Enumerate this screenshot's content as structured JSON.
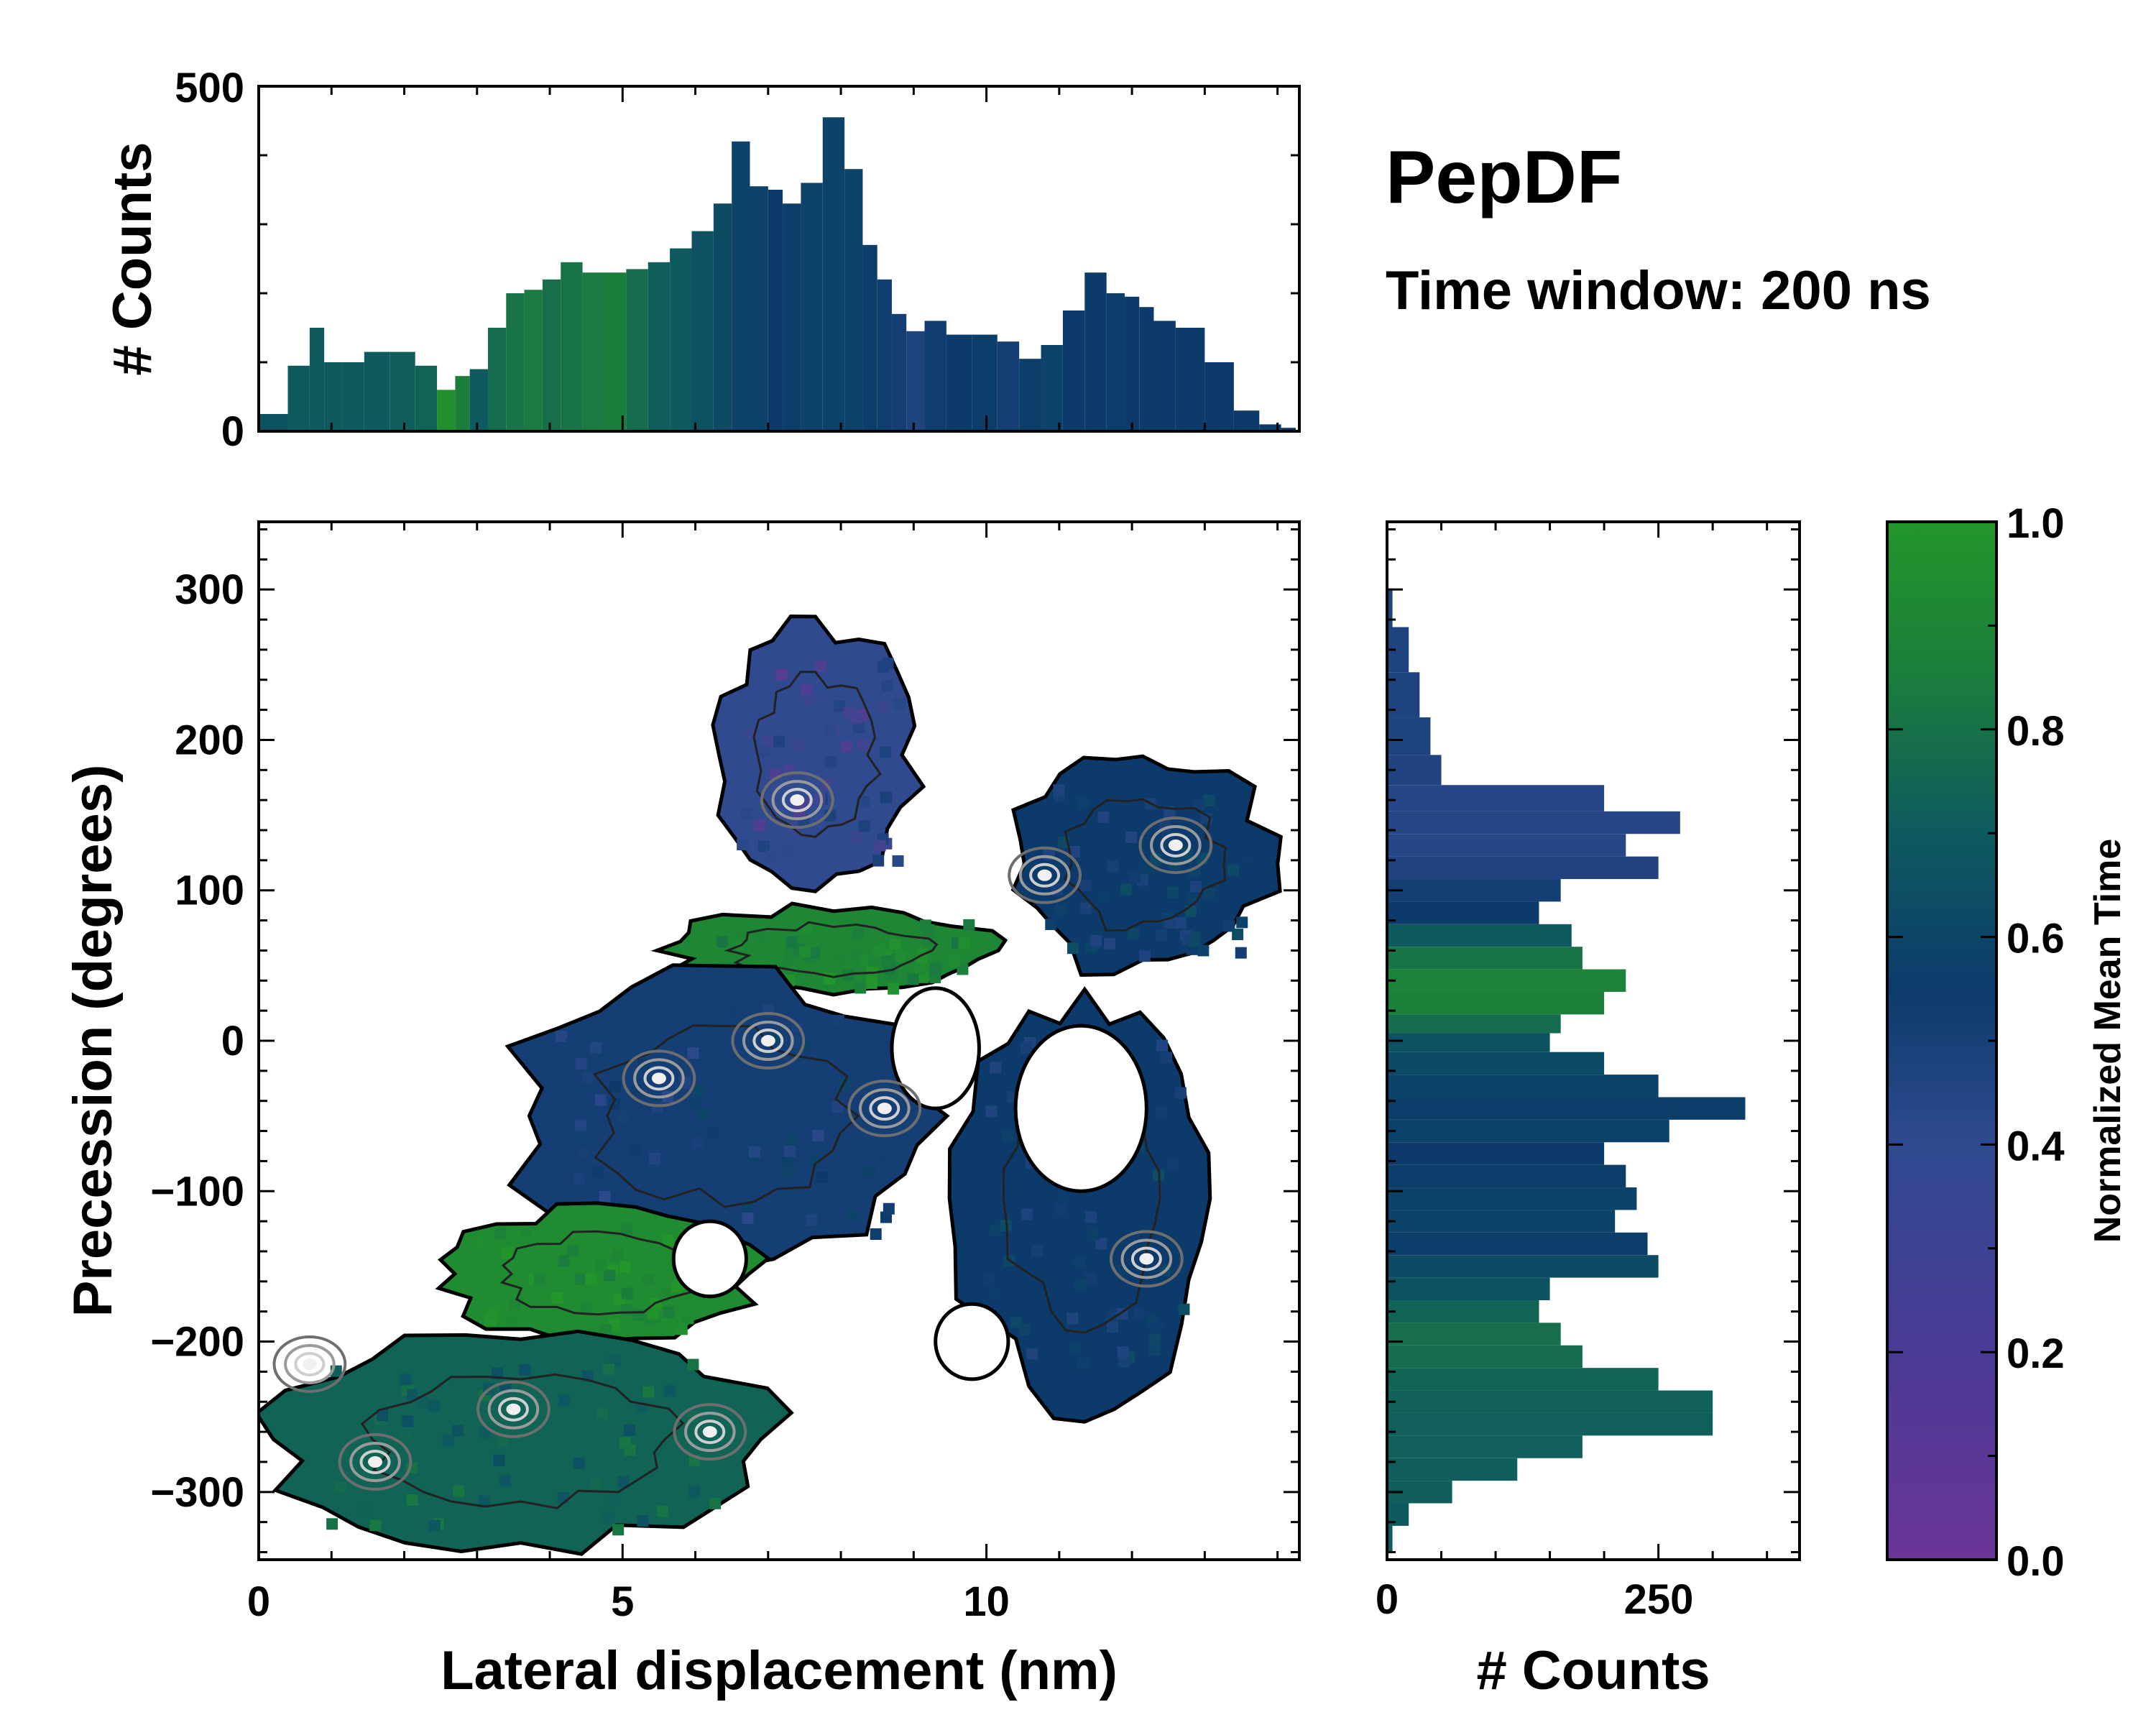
{
  "figure": {
    "title": "PepDF",
    "subtitle": "Time window: 200 ns"
  },
  "chart_data": [
    {
      "id": "top_histogram",
      "type": "bar",
      "ylabel": "# Counts",
      "xlim": [
        0,
        14.3
      ],
      "ylim": [
        0,
        500
      ],
      "yticks": [
        0,
        500
      ],
      "color_by": "Normalized Mean Time",
      "x": [
        0.2,
        0.6,
        0.8,
        1.0,
        1.3,
        1.6,
        2.0,
        2.3,
        2.6,
        2.8,
        3.0,
        3.3,
        3.5,
        3.8,
        4.0,
        4.3,
        4.6,
        4.9,
        5.2,
        5.5,
        5.8,
        6.1,
        6.4,
        6.6,
        6.9,
        7.1,
        7.3,
        7.6,
        7.9,
        8.2,
        8.4,
        8.6,
        8.8,
        9.0,
        9.3,
        9.6,
        10.0,
        10.3,
        10.6,
        10.9,
        11.2,
        11.5,
        11.8,
        12.0,
        12.2,
        12.4,
        12.8,
        13.2,
        13.6,
        13.9,
        14.2
      ],
      "values": [
        25,
        95,
        150,
        100,
        100,
        115,
        115,
        95,
        60,
        80,
        90,
        150,
        200,
        205,
        220,
        245,
        230,
        230,
        235,
        245,
        265,
        290,
        330,
        420,
        355,
        350,
        330,
        360,
        455,
        380,
        270,
        220,
        170,
        145,
        160,
        140,
        140,
        130,
        105,
        125,
        175,
        230,
        200,
        195,
        180,
        160,
        150,
        100,
        30,
        10,
        5
      ],
      "norm_time": [
        0.55,
        0.6,
        0.6,
        0.6,
        0.6,
        0.6,
        0.62,
        0.65,
        0.95,
        0.8,
        0.6,
        0.7,
        0.75,
        0.78,
        0.72,
        0.75,
        0.78,
        0.8,
        0.7,
        0.62,
        0.6,
        0.55,
        0.5,
        0.45,
        0.45,
        0.4,
        0.42,
        0.45,
        0.45,
        0.45,
        0.42,
        0.38,
        0.35,
        0.3,
        0.38,
        0.4,
        0.42,
        0.35,
        0.42,
        0.45,
        0.4,
        0.4,
        0.42,
        0.4,
        0.4,
        0.4,
        0.4,
        0.4,
        0.4,
        0.4,
        0.4
      ]
    },
    {
      "id": "joint_map",
      "type": "heatmap",
      "xlabel": "Lateral displacement (nm)",
      "ylabel": "Precession (degrees)",
      "xlim": [
        0,
        14.3
      ],
      "ylim": [
        -345,
        345
      ],
      "xticks": [
        0,
        5,
        10
      ],
      "yticks": [
        -300,
        -200,
        -100,
        0,
        100,
        200,
        300
      ],
      "color_by": "Normalized Mean Time",
      "regions": [
        {
          "name": "upper-purple",
          "norm_time": 0.2,
          "x": [
            6.2,
            9.1
          ],
          "y": [
            100,
            280
          ]
        },
        {
          "name": "upper-right-blue",
          "norm_time": 0.4,
          "x": [
            10.3,
            14.0
          ],
          "y": [
            40,
            195
          ]
        },
        {
          "name": "central-green",
          "norm_time": 0.88,
          "x": [
            5.5,
            10.3
          ],
          "y": [
            30,
            90
          ]
        },
        {
          "name": "central-mixed",
          "norm_time": 0.35,
          "x": [
            3.3,
            9.5
          ],
          "y": [
            -150,
            50
          ]
        },
        {
          "name": "right-ring-blue",
          "norm_time": 0.4,
          "x": [
            9.5,
            13.2
          ],
          "y": [
            -250,
            40
          ]
        },
        {
          "name": "mid-green",
          "norm_time": 0.92,
          "x": [
            2.3,
            7.0
          ],
          "y": [
            -200,
            -110
          ]
        },
        {
          "name": "lower-teal",
          "norm_time": 0.65,
          "x": [
            0,
            7.2
          ],
          "y": [
            -340,
            -190
          ]
        }
      ],
      "peaks": [
        {
          "x": 7.4,
          "y": 160
        },
        {
          "x": 10.8,
          "y": 110
        },
        {
          "x": 12.6,
          "y": 130
        },
        {
          "x": 7.0,
          "y": 0
        },
        {
          "x": 8.6,
          "y": -45
        },
        {
          "x": 5.5,
          "y": -25
        },
        {
          "x": 12.2,
          "y": -145
        },
        {
          "x": 0.7,
          "y": -215
        },
        {
          "x": 1.6,
          "y": -280
        },
        {
          "x": 6.2,
          "y": -260
        },
        {
          "x": 3.5,
          "y": -245
        }
      ]
    },
    {
      "id": "right_histogram",
      "type": "bar",
      "orientation": "horizontal",
      "xlabel": "# Counts",
      "xlim": [
        0,
        380
      ],
      "xticks": [
        0,
        250
      ],
      "ylim": [
        -345,
        345
      ],
      "color_by": "Normalized Mean Time",
      "y": [
        290,
        260,
        230,
        200,
        180,
        160,
        145,
        130,
        115,
        100,
        85,
        70,
        55,
        40,
        25,
        10,
        0,
        -15,
        -30,
        -45,
        -60,
        -75,
        -90,
        -105,
        -120,
        -135,
        -150,
        -165,
        -180,
        -195,
        -210,
        -225,
        -240,
        -255,
        -270,
        -285,
        -300,
        -315,
        -330
      ],
      "values": [
        5,
        20,
        30,
        40,
        50,
        200,
        270,
        220,
        250,
        160,
        140,
        170,
        180,
        220,
        200,
        160,
        150,
        200,
        250,
        330,
        260,
        200,
        220,
        230,
        210,
        240,
        250,
        150,
        140,
        160,
        180,
        250,
        300,
        300,
        180,
        120,
        60,
        20,
        5
      ],
      "norm_time": [
        0.3,
        0.3,
        0.3,
        0.3,
        0.28,
        0.25,
        0.25,
        0.25,
        0.28,
        0.35,
        0.4,
        0.6,
        0.75,
        0.85,
        0.82,
        0.7,
        0.55,
        0.5,
        0.45,
        0.42,
        0.44,
        0.4,
        0.42,
        0.45,
        0.45,
        0.42,
        0.5,
        0.55,
        0.65,
        0.72,
        0.7,
        0.66,
        0.64,
        0.63,
        0.63,
        0.62,
        0.62,
        0.6,
        0.6
      ]
    },
    {
      "id": "colorbar",
      "type": "colorbar",
      "label": "Normalized Mean Time",
      "range": [
        0.0,
        1.0
      ],
      "ticks": [
        "0.0",
        "0.2",
        "0.4",
        "0.6",
        "0.8",
        "1.0"
      ],
      "colors": [
        "#6a3596",
        "#2f4a8f",
        "#0c3b6b",
        "#0e5a5f",
        "#1b7d3c",
        "#22962a"
      ]
    }
  ]
}
